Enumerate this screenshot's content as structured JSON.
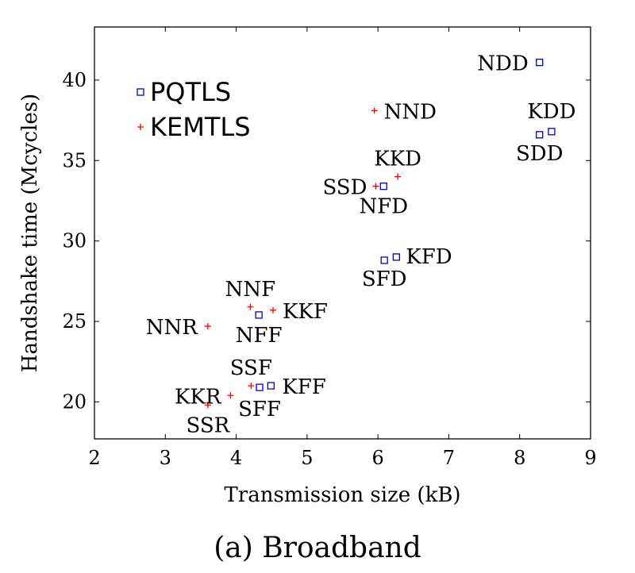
{
  "chart_data": {
    "type": "scatter",
    "title": "",
    "caption": "(a) Broadband",
    "xlabel": "Transmission size (kB)",
    "ylabel": "Handshake time (Mcycles)",
    "xlim": [
      2,
      9
    ],
    "ylim": [
      17.7,
      43.3
    ],
    "xticks": [
      2,
      3,
      4,
      5,
      6,
      7,
      8,
      9
    ],
    "yticks": [
      20,
      25,
      30,
      35,
      40
    ],
    "grid": false,
    "legend_position": "top-left",
    "series": [
      {
        "name": "PQTLS",
        "marker": "square",
        "color": "#0000cc",
        "points": [
          {
            "label": "NDD",
            "x": 8.28,
            "y": 41.1
          },
          {
            "label": "KDD",
            "x": 8.45,
            "y": 36.8
          },
          {
            "label": "SDD",
            "x": 8.28,
            "y": 36.6
          },
          {
            "label": "NFD",
            "x": 6.08,
            "y": 33.4
          },
          {
            "label": "KFD",
            "x": 6.26,
            "y": 29.0
          },
          {
            "label": "SFD",
            "x": 6.09,
            "y": 28.8
          },
          {
            "label": "NFF",
            "x": 4.32,
            "y": 25.4
          },
          {
            "label": "KFF",
            "x": 4.49,
            "y": 21.0
          },
          {
            "label": "SFF",
            "x": 4.33,
            "y": 20.9
          }
        ]
      },
      {
        "name": "KEMTLS",
        "marker": "plus",
        "color": "#ff0000",
        "points": [
          {
            "label": "NND",
            "x": 5.95,
            "y": 38.1
          },
          {
            "label": "KKD",
            "x": 6.28,
            "y": 34.0
          },
          {
            "label": "SSD",
            "x": 5.97,
            "y": 33.4
          },
          {
            "label": "NNF",
            "x": 4.2,
            "y": 25.9
          },
          {
            "label": "KKF",
            "x": 4.52,
            "y": 25.7
          },
          {
            "label": "NNR",
            "x": 3.6,
            "y": 24.7
          },
          {
            "label": "SSF",
            "x": 4.21,
            "y": 21.0
          },
          {
            "label": "KKR",
            "x": 3.92,
            "y": 20.4
          },
          {
            "label": "SSR",
            "x": 3.6,
            "y": 19.8
          }
        ]
      }
    ]
  }
}
